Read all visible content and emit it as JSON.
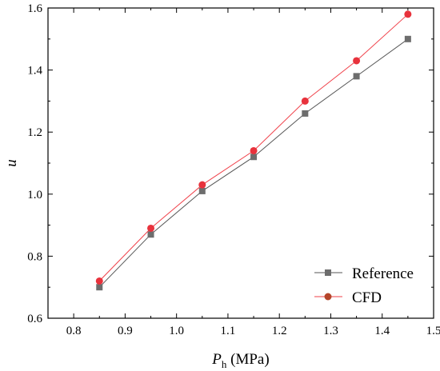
{
  "chart_data": {
    "type": "line",
    "xlabel": {
      "main": "P",
      "subscript": "h",
      "unit": " (MPa)"
    },
    "ylabel": "u",
    "xlim": [
      0.75,
      1.5
    ],
    "ylim": [
      0.6,
      1.6
    ],
    "xticks": [
      "0.8",
      "0.9",
      "1.0",
      "1.1",
      "1.2",
      "1.3",
      "1.4",
      "1.5"
    ],
    "yticks": [
      "0.6",
      "0.8",
      "1.0",
      "1.2",
      "1.4",
      "1.6"
    ],
    "x": [
      0.85,
      0.95,
      1.05,
      1.15,
      1.25,
      1.35,
      1.45
    ],
    "series": [
      {
        "name": "Reference",
        "marker": "square",
        "color": "#555555",
        "marker_color": "#6d6d6d",
        "values": [
          0.7,
          0.87,
          1.01,
          1.12,
          1.26,
          1.38,
          1.5
        ]
      },
      {
        "name": "CFD",
        "marker": "circle",
        "color": "#f0414a",
        "marker_color": "#e8323c",
        "values": [
          0.72,
          0.89,
          1.03,
          1.14,
          1.3,
          1.43,
          1.58
        ]
      }
    ],
    "legend_position": "bottom-right",
    "grid": false
  }
}
